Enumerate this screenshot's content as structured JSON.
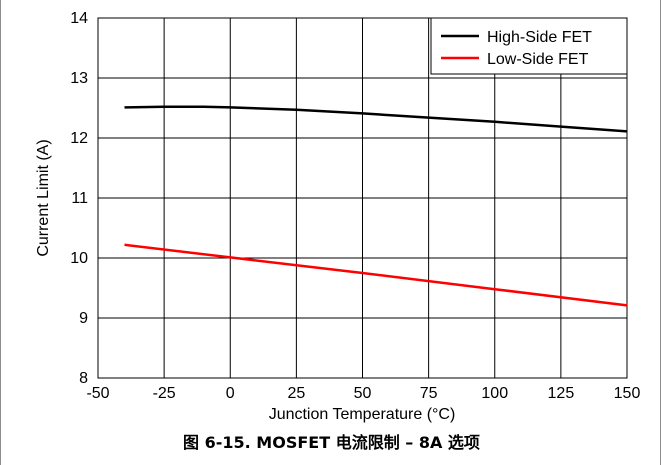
{
  "caption": "图 6-15. MOSFET 电流限制 – 8A 选项",
  "chart_data": {
    "type": "line",
    "xlabel": "Junction Temperature (°C)",
    "ylabel": "Current Limit (A)",
    "xlim": [
      -50,
      150
    ],
    "ylim": [
      8,
      14
    ],
    "xticks": [
      -50,
      -25,
      0,
      25,
      50,
      75,
      100,
      125,
      150
    ],
    "yticks": [
      8,
      9,
      10,
      11,
      12,
      13,
      14
    ],
    "grid": true,
    "legend_position": "top-right",
    "series": [
      {
        "name": "High-Side FET",
        "color": "#000000",
        "x": [
          -40,
          -25,
          -10,
          0,
          25,
          50,
          75,
          100,
          125,
          150
        ],
        "y": [
          12.51,
          12.52,
          12.52,
          12.51,
          12.47,
          12.41,
          12.34,
          12.27,
          12.19,
          12.11
        ]
      },
      {
        "name": "Low-Side FET",
        "color": "#ff0000",
        "x": [
          -40,
          0,
          50,
          100,
          150
        ],
        "y": [
          10.22,
          10.01,
          9.75,
          9.48,
          9.21
        ]
      }
    ]
  }
}
